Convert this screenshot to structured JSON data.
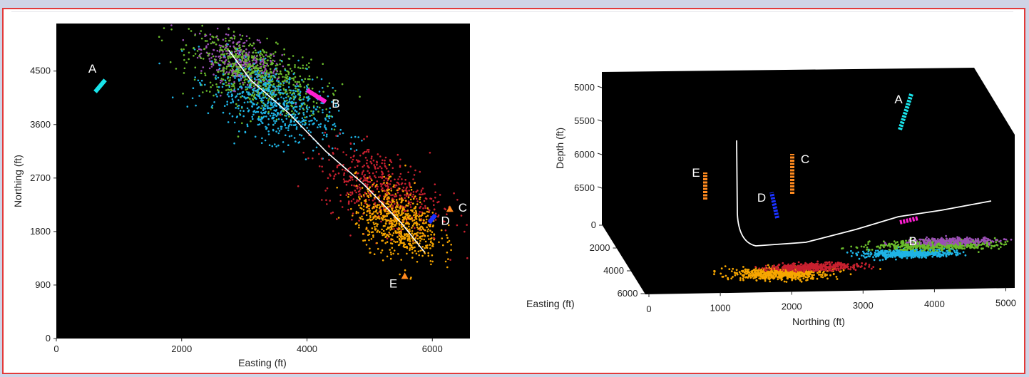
{
  "colors": {
    "page_background": "#cfd4e6",
    "frame_border": "#e23a3a",
    "plot_background": "#000000",
    "well_path": "#ffffff",
    "point_labels": "#ffffff",
    "axis_text": "#222222"
  },
  "chart_data": [
    {
      "type": "scatter",
      "title": "",
      "xlabel": "Easting (ft)",
      "ylabel": "Northing (ft)",
      "xlim": [
        0,
        6600
      ],
      "ylim": [
        0,
        5300
      ],
      "x_ticks": [
        0,
        2000,
        4000,
        6000
      ],
      "y_ticks": [
        0,
        900,
        1800,
        2700,
        3600,
        4500
      ],
      "grid": false,
      "legend": "none",
      "well_path": [
        [
          2750,
          4850
        ],
        [
          3100,
          4350
        ],
        [
          3700,
          3800
        ],
        [
          4300,
          3150
        ],
        [
          4900,
          2600
        ],
        [
          5500,
          1950
        ],
        [
          5880,
          1450
        ]
      ],
      "clusters": [
        {
          "color": "#9b4fb5",
          "center": [
            2950,
            4650
          ],
          "spread": [
            320,
            200
          ],
          "count": 360
        },
        {
          "color": "#6abb2c",
          "center": [
            3200,
            4420
          ],
          "spread": [
            520,
            280
          ],
          "count": 700
        },
        {
          "color": "#1fb4e6",
          "center": [
            3450,
            3950
          ],
          "spread": [
            480,
            300
          ],
          "count": 620
        },
        {
          "color": "#c8202f",
          "center": [
            5200,
            2520
          ],
          "spread": [
            480,
            320
          ],
          "count": 520
        },
        {
          "color": "#f7a600",
          "center": [
            5450,
            1950
          ],
          "spread": [
            330,
            280
          ],
          "count": 700
        }
      ],
      "markers": [
        {
          "label": "A",
          "color": "#19e4ea",
          "x": [
            620,
            780
          ],
          "y": [
            4150,
            4350
          ]
        },
        {
          "label": "B",
          "color": "#ff1fd2",
          "x": [
            4000,
            4300
          ],
          "y": [
            4180,
            3980
          ]
        },
        {
          "label": "C",
          "color": "#ff8a1f",
          "x": [
            6280
          ],
          "y": [
            2180
          ]
        },
        {
          "label": "D",
          "color": "#1a32ff",
          "x": [
            5950,
            6050
          ],
          "y": [
            1950,
            2080
          ]
        },
        {
          "label": "E",
          "color": "#ff8a1f",
          "x": [
            5560
          ],
          "y": [
            1050
          ]
        }
      ]
    },
    {
      "type": "scatter",
      "title": "",
      "xlabel": "Northing (ft)",
      "ylabel": "Depth (ft)",
      "zlabel": "Easting (ft)",
      "x_ticks": [
        0,
        1000,
        2000,
        3000,
        4000,
        5000
      ],
      "y_ticks": [
        5000,
        5500,
        6000,
        6500
      ],
      "z_ticks": [
        0,
        2000,
        4000,
        6000
      ],
      "grid": false,
      "legend": "none",
      "clusters": [
        {
          "color": "#f7a600",
          "center": [
            1750,
            5200
          ],
          "spread": [
            330,
            260
          ],
          "count": 620
        },
        {
          "color": "#c8202f",
          "center": [
            2250,
            4700
          ],
          "spread": [
            320,
            160
          ],
          "count": 420
        },
        {
          "color": "#1fb4e6",
          "center": [
            3600,
            3700
          ],
          "spread": [
            330,
            170
          ],
          "count": 520
        },
        {
          "color": "#6abb2c",
          "center": [
            4050,
            3000
          ],
          "spread": [
            450,
            200
          ],
          "count": 520
        },
        {
          "color": "#9b4fb5",
          "center": [
            4300,
            2700
          ],
          "spread": [
            320,
            150
          ],
          "count": 260
        }
      ],
      "markers": [
        {
          "label": "A",
          "color": "#19e4ea"
        },
        {
          "label": "B",
          "color": "#ff1fd2"
        },
        {
          "label": "C",
          "color": "#ff8a1f"
        },
        {
          "label": "D",
          "color": "#1a32ff"
        },
        {
          "label": "E",
          "color": "#ff8a1f"
        }
      ]
    }
  ]
}
